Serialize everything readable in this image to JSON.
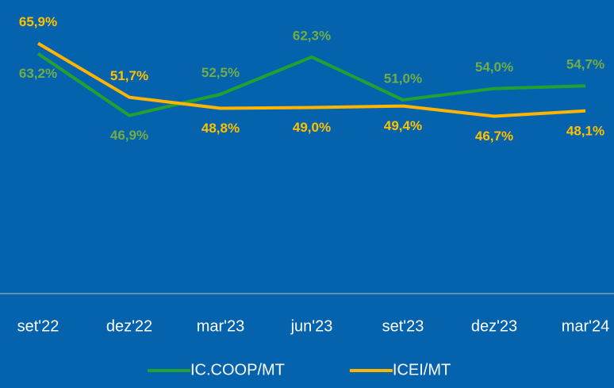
{
  "chart_data": {
    "type": "line",
    "categories": [
      "set'22",
      "dez'22",
      "mar'23",
      "jun'23",
      "set'23",
      "dez'23",
      "mar'24"
    ],
    "series": [
      {
        "name": "IC.COOP/MT",
        "color": "#25a030",
        "label_color": "#70ad47",
        "values": [
          63.2,
          46.9,
          52.5,
          62.3,
          51.0,
          54.0,
          54.7
        ],
        "value_labels": [
          "63,2%",
          "46,9%",
          "52,5%",
          "62,3%",
          "51,0%",
          "54,0%",
          "54,7%"
        ]
      },
      {
        "name": "ICEI/MT",
        "color": "#ffb400",
        "label_color": "#ffc000",
        "values": [
          65.9,
          51.7,
          48.8,
          49.0,
          49.4,
          46.7,
          48.1
        ],
        "value_labels": [
          "65,9%",
          "51,7%",
          "48,8%",
          "49,0%",
          "49,4%",
          "46,7%",
          "48,1%"
        ]
      }
    ],
    "ylim": [
      0,
      70
    ],
    "legend": "bottom"
  }
}
